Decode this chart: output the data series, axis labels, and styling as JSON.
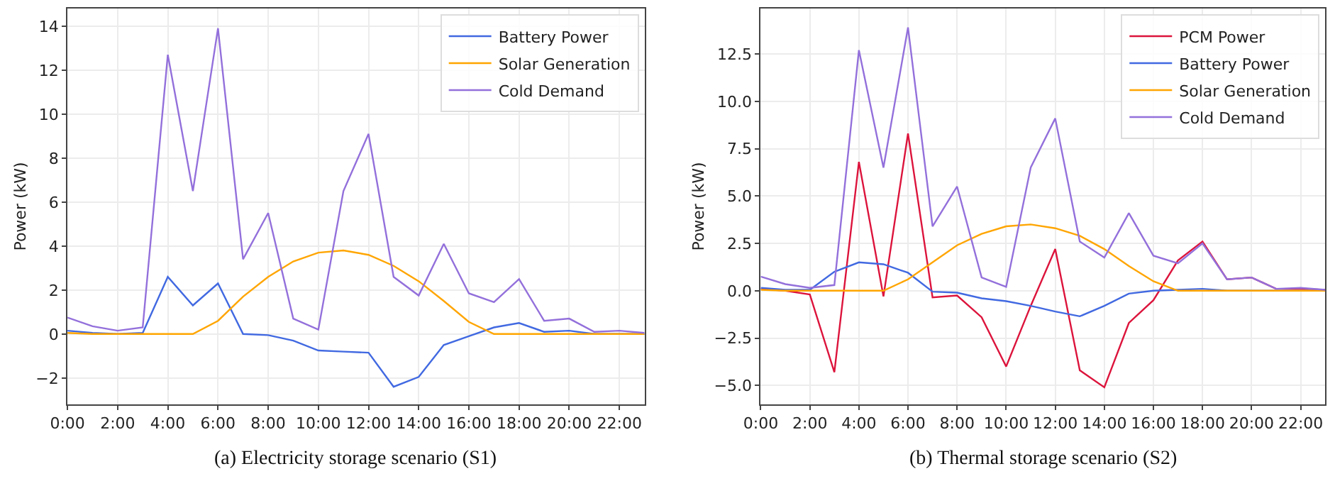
{
  "chart_data": [
    {
      "type": "line",
      "ylabel": "Power (kW)",
      "annotations": [
        "(a) Electricity storage scenario (S1)"
      ],
      "x": [
        0,
        1,
        2,
        3,
        4,
        5,
        6,
        7,
        8,
        9,
        10,
        11,
        12,
        13,
        14,
        15,
        16,
        17,
        18,
        19,
        20,
        21,
        22,
        23
      ],
      "series": [
        {
          "name": "Battery Power",
          "color": "#4169e1",
          "values": [
            0.15,
            0.05,
            0.0,
            0.05,
            2.6,
            1.3,
            2.3,
            0.0,
            -0.05,
            -0.3,
            -0.75,
            -0.8,
            -0.85,
            -2.4,
            -1.95,
            -0.5,
            -0.1,
            0.3,
            0.5,
            0.1,
            0.15,
            0.0,
            0.0,
            0.0
          ]
        },
        {
          "name": "Solar Generation",
          "color": "#ffa500",
          "values": [
            0.05,
            0.0,
            0.0,
            0.0,
            0.0,
            0.0,
            0.6,
            1.7,
            2.6,
            3.3,
            3.7,
            3.8,
            3.6,
            3.1,
            2.4,
            1.5,
            0.55,
            0.0,
            0.0,
            0.0,
            0.0,
            0.0,
            0.0,
            0.0
          ]
        },
        {
          "name": "Cold Demand",
          "color": "#9370db",
          "values": [
            0.75,
            0.35,
            0.15,
            0.3,
            12.7,
            6.5,
            13.9,
            3.4,
            5.5,
            0.7,
            0.2,
            6.5,
            9.1,
            2.6,
            1.75,
            4.1,
            1.85,
            1.45,
            2.5,
            0.6,
            0.7,
            0.1,
            0.15,
            0.05
          ]
        }
      ],
      "xlim": [
        0,
        23
      ],
      "xticks": [
        {
          "value": 0,
          "label": "0:00"
        },
        {
          "value": 2,
          "label": "2:00"
        },
        {
          "value": 4,
          "label": "4:00"
        },
        {
          "value": 6,
          "label": "6:00"
        },
        {
          "value": 8,
          "label": "8:00"
        },
        {
          "value": 10,
          "label": "10:00"
        },
        {
          "value": 12,
          "label": "12:00"
        },
        {
          "value": 14,
          "label": "14:00"
        },
        {
          "value": 16,
          "label": "16:00"
        },
        {
          "value": 18,
          "label": "18:00"
        },
        {
          "value": 20,
          "label": "20:00"
        },
        {
          "value": 22,
          "label": "22:00"
        }
      ],
      "ylim": [
        -3.2,
        14.8
      ],
      "yticks": [
        {
          "value": -2,
          "label": "−2"
        },
        0,
        2,
        4,
        6,
        8,
        10,
        12,
        14
      ],
      "grid": true,
      "legend": "top right",
      "marker": "none",
      "line_style": "solid"
    },
    {
      "type": "line",
      "ylabel": "Power (kW)",
      "annotations": [
        "(b) Thermal storage scenario (S2)"
      ],
      "x": [
        0,
        1,
        2,
        3,
        4,
        5,
        6,
        7,
        8,
        9,
        10,
        11,
        12,
        13,
        14,
        15,
        16,
        17,
        18,
        19,
        20,
        21,
        22,
        23
      ],
      "series": [
        {
          "name": "PCM Power",
          "color": "#dc143c",
          "values": [
            0.1,
            0.0,
            -0.2,
            -4.3,
            6.8,
            -0.3,
            8.3,
            -0.35,
            -0.25,
            -1.4,
            -4.0,
            -0.8,
            2.2,
            -4.2,
            -5.1,
            -1.7,
            -0.5,
            1.6,
            2.6,
            0.6,
            0.7,
            0.1,
            0.1,
            0.05
          ]
        },
        {
          "name": "Battery Power",
          "color": "#4169e1",
          "values": [
            0.15,
            0.05,
            0.05,
            1.0,
            1.5,
            1.4,
            0.95,
            -0.05,
            -0.1,
            -0.4,
            -0.55,
            -0.8,
            -1.1,
            -1.35,
            -0.8,
            -0.15,
            0.0,
            0.05,
            0.1,
            0.0,
            0.0,
            0.0,
            0.0,
            0.0
          ]
        },
        {
          "name": "Solar Generation",
          "color": "#ffa500",
          "values": [
            0.05,
            0.0,
            0.0,
            0.0,
            0.0,
            0.0,
            0.6,
            1.5,
            2.4,
            3.0,
            3.4,
            3.5,
            3.3,
            2.9,
            2.2,
            1.3,
            0.5,
            0.0,
            0.0,
            0.0,
            0.0,
            0.0,
            0.0,
            0.0
          ]
        },
        {
          "name": "Cold Demand",
          "color": "#9370db",
          "values": [
            0.75,
            0.35,
            0.15,
            0.3,
            12.7,
            6.5,
            13.9,
            3.4,
            5.5,
            0.7,
            0.2,
            6.5,
            9.1,
            2.6,
            1.75,
            4.1,
            1.85,
            1.45,
            2.5,
            0.6,
            0.7,
            0.1,
            0.15,
            0.05
          ]
        }
      ],
      "xlim": [
        0,
        23
      ],
      "xticks": [
        {
          "value": 0,
          "label": "0:00"
        },
        {
          "value": 2,
          "label": "2:00"
        },
        {
          "value": 4,
          "label": "4:00"
        },
        {
          "value": 6,
          "label": "6:00"
        },
        {
          "value": 8,
          "label": "8:00"
        },
        {
          "value": 10,
          "label": "10:00"
        },
        {
          "value": 12,
          "label": "12:00"
        },
        {
          "value": 14,
          "label": "14:00"
        },
        {
          "value": 16,
          "label": "16:00"
        },
        {
          "value": 18,
          "label": "18:00"
        },
        {
          "value": 20,
          "label": "20:00"
        },
        {
          "value": 22,
          "label": "22:00"
        }
      ],
      "ylim": [
        -6.0,
        14.9
      ],
      "yticks": [
        {
          "value": -5,
          "label": "−5.0"
        },
        {
          "value": -2.5,
          "label": "−2.5"
        },
        {
          "value": 0,
          "label": "0.0"
        },
        2.5,
        {
          "value": 5,
          "label": "5.0"
        },
        7.5,
        {
          "value": 10,
          "label": "10.0"
        },
        12.5
      ],
      "grid": true,
      "legend": "top right",
      "marker": "none",
      "line_style": "solid"
    }
  ]
}
